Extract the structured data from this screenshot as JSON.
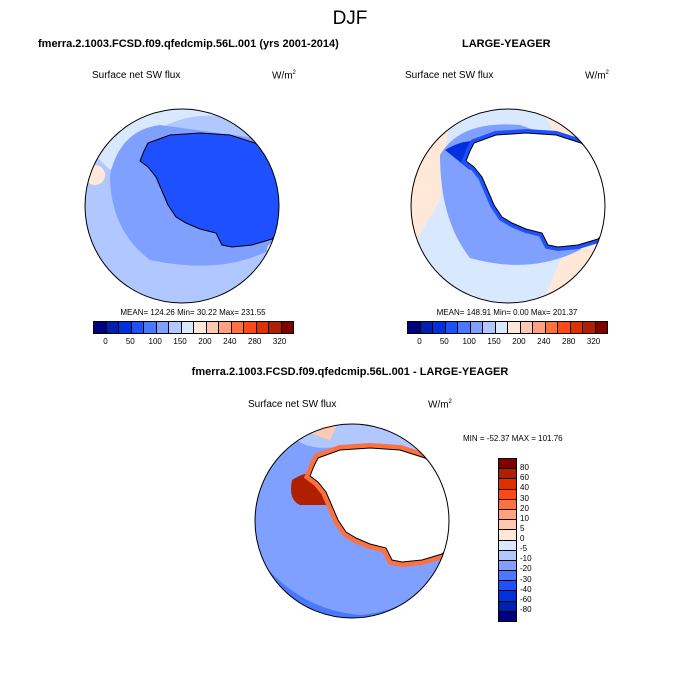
{
  "title": "DJF",
  "panel1": {
    "title": "fmerra.2.1003.FCSD.f09.qfedcmip.56L.001 (yrs 2001-2014)",
    "variable": "Surface net SW flux",
    "units": "W/m",
    "units_sup": "2",
    "stats": "MEAN= 124.26  Min=  30.22  Max= 231.55"
  },
  "panel2": {
    "title": "LARGE-YEAGER",
    "variable": "Surface net SW flux",
    "units": "W/m",
    "units_sup": "2",
    "stats": "MEAN= 148.91  Min=   0.00  Max= 201.37"
  },
  "panel3": {
    "title": "fmerra.2.1003.FCSD.f09.qfedcmip.56L.001 - LARGE-YEAGER",
    "variable": "Surface net SW flux",
    "units": "W/m",
    "units_sup": "2",
    "stats": "MIN = -52.37 MAX = 101.76"
  },
  "colorbar_abs": {
    "labels": [
      "0",
      "50",
      "100",
      "150",
      "200",
      "240",
      "280",
      "320"
    ],
    "colors": [
      "#00007f",
      "#0020b0",
      "#0030e0",
      "#1e50ff",
      "#4878ff",
      "#80a0ff",
      "#b0c8ff",
      "#d8e8ff",
      "#ffe8d8",
      "#ffc8b0",
      "#ffa080",
      "#ff7040",
      "#ff4818",
      "#e03000",
      "#b02000",
      "#800000"
    ]
  },
  "colorbar_diff": {
    "labels": [
      "80",
      "60",
      "40",
      "30",
      "20",
      "10",
      "5",
      "0",
      "-5",
      "-10",
      "-20",
      "-30",
      "-40",
      "-60",
      "-80"
    ],
    "colors": [
      "#800000",
      "#b02000",
      "#e03000",
      "#ff4818",
      "#ff7040",
      "#ffa080",
      "#ffc8b0",
      "#ffe8d8",
      "#d8e8ff",
      "#b0c8ff",
      "#80a0ff",
      "#4878ff",
      "#1e50ff",
      "#0030e0",
      "#0020b0",
      "#00007f"
    ]
  }
}
